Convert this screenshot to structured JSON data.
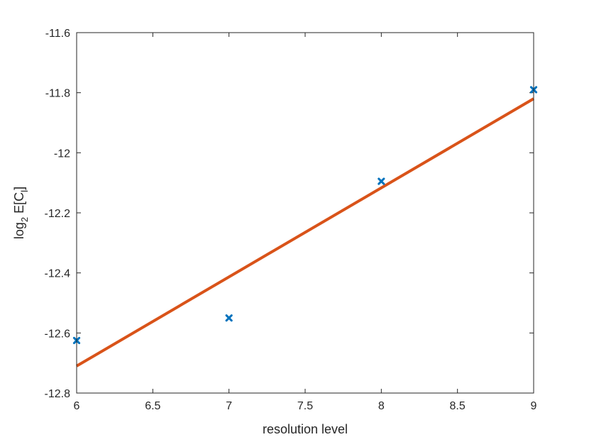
{
  "chart_data": {
    "type": "scatter",
    "xlabel": "resolution level",
    "ylabel": {
      "base": "log",
      "base_subscript": "2",
      "main": " E[C",
      "main_subscript": "l",
      "close": "]"
    },
    "xlim": [
      6,
      9
    ],
    "ylim": [
      -12.8,
      -11.6
    ],
    "xticks": [
      6,
      6.5,
      7,
      7.5,
      8,
      8.5,
      9
    ],
    "xtick_labels": [
      "6",
      "6.5",
      "7",
      "7.5",
      "8",
      "8.5",
      "9"
    ],
    "yticks": [
      -12.8,
      -12.6,
      -12.4,
      -12.2,
      -12,
      -11.8,
      -11.6
    ],
    "ytick_labels": [
      "-12.8",
      "-12.6",
      "-12.4",
      "-12.2",
      "-12",
      "-11.8",
      "-11.6"
    ],
    "grid": false,
    "series": [
      {
        "kind": "markers",
        "marker": "x",
        "color": "#0072BD",
        "x": [
          6,
          7,
          8,
          9
        ],
        "y": [
          -12.625,
          -12.55,
          -12.095,
          -11.79
        ]
      },
      {
        "kind": "line",
        "color": "#D95319",
        "x": [
          6,
          9
        ],
        "y": [
          -12.71,
          -11.82
        ]
      }
    ]
  }
}
